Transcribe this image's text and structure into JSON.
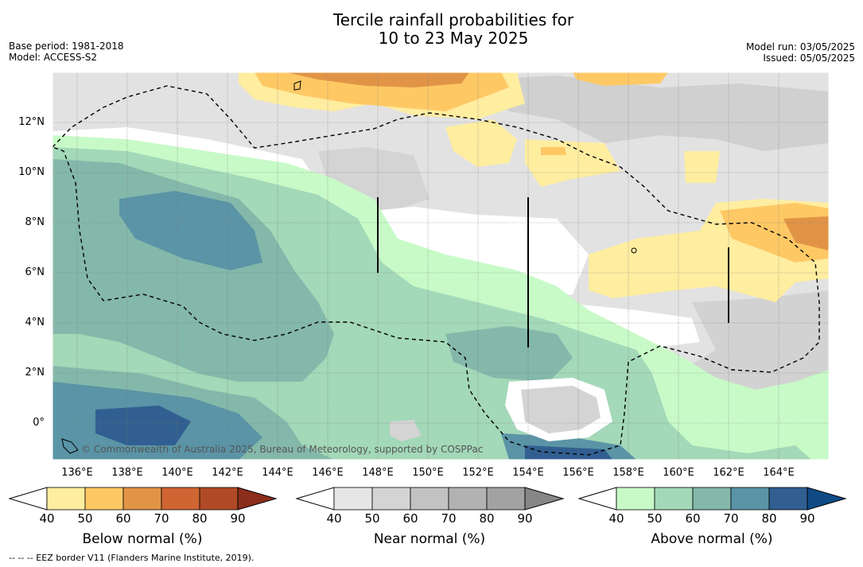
{
  "title": {
    "line1": "Tercile rainfall probabilities for",
    "line2": "10 to 23 May 2025"
  },
  "meta_left": {
    "base_period": "Base period: 1981-2018",
    "model": "Model: ACCESS-S2"
  },
  "meta_right": {
    "model_run": "Model run: 03/05/2025",
    "issued": "Issued: 05/05/2025"
  },
  "map": {
    "lat_labels": [
      "12°N",
      "10°N",
      "8°N",
      "6°N",
      "4°N",
      "2°N",
      "0°"
    ],
    "lon_labels": [
      "136°E",
      "138°E",
      "140°E",
      "142°E",
      "144°E",
      "146°E",
      "148°E",
      "150°E",
      "152°E",
      "154°E",
      "156°E",
      "158°E",
      "160°E",
      "162°E",
      "164°E"
    ],
    "copyright": "© Commonwealth of Australia 2025, Bureau of Meteorology, supported by COSPPac"
  },
  "colorbars": {
    "below": {
      "title": "Below normal (%)",
      "ticks": [
        "40",
        "50",
        "60",
        "70",
        "80",
        "90"
      ],
      "colors": [
        "#ffffff",
        "#ffeda0",
        "#fec965",
        "#e19446",
        "#cf6533",
        "#b04a26",
        "#8c2e1c"
      ]
    },
    "near": {
      "title": "Near normal (%)",
      "ticks": [
        "40",
        "50",
        "60",
        "70",
        "80",
        "90"
      ],
      "colors": [
        "#ffffff",
        "#e6e6e6",
        "#d4d4d4",
        "#c2c2c2",
        "#b2b2b2",
        "#a2a2a2",
        "#878787"
      ]
    },
    "above": {
      "title": "Above normal (%)",
      "ticks": [
        "40",
        "50",
        "60",
        "70",
        "80",
        "90"
      ],
      "colors": [
        "#ffffff",
        "#c8fac8",
        "#a3d8b8",
        "#84b8aa",
        "#5a94a6",
        "#315f91",
        "#0f4a85"
      ]
    }
  },
  "footer": "--  --  -- EEZ border V11 (Flanders Marine Institute, 2019)."
}
